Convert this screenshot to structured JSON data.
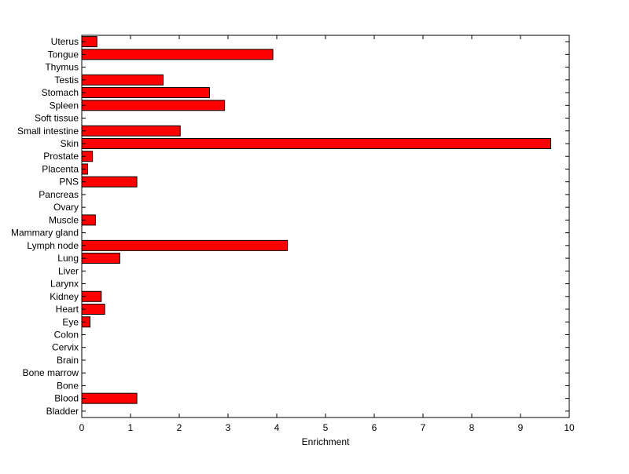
{
  "chart_data": {
    "type": "bar",
    "orientation": "horizontal",
    "title": "",
    "xlabel": "Enrichment",
    "ylabel": "",
    "xlim": [
      0,
      10
    ],
    "x_ticks": [
      "0",
      "1",
      "2",
      "3",
      "4",
      "5",
      "6",
      "7",
      "8",
      "9",
      "10"
    ],
    "categories": [
      "Bladder",
      "Blood",
      "Bone",
      "Bone marrow",
      "Brain",
      "Cervix",
      "Colon",
      "Eye",
      "Heart",
      "Kidney",
      "Larynx",
      "Liver",
      "Lung",
      "Lymph node",
      "Mammary gland",
      "Muscle",
      "Ovary",
      "Pancreas",
      "PNS",
      "Placenta",
      "Prostate",
      "Skin",
      "Small intestine",
      "Soft tissue",
      "Spleen",
      "Stomach",
      "Testis",
      "Thymus",
      "Tongue",
      "Uterus"
    ],
    "values": [
      0,
      1.13,
      0,
      0,
      0,
      0,
      0,
      0.17,
      0.47,
      0.4,
      0,
      0,
      0.78,
      4.22,
      0,
      0.28,
      0,
      0,
      1.13,
      0.12,
      0.22,
      9.62,
      2.02,
      0,
      2.93,
      2.62,
      1.67,
      0,
      3.92,
      0.31
    ],
    "bar_color": "#ff0000",
    "bar_edge_color": "#000000",
    "grid": false,
    "legend": "none"
  }
}
